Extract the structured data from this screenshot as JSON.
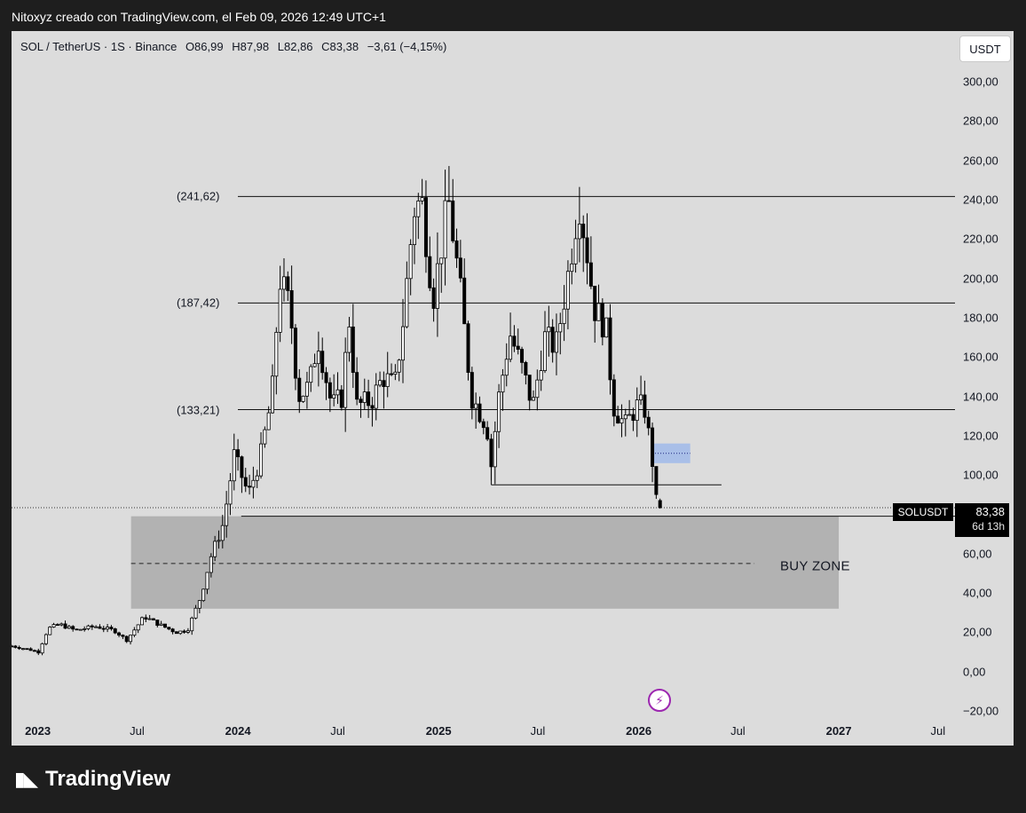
{
  "header": "Nitoxyz creado con TradingView.com, el Feb 09, 2026 12:49 UTC+1",
  "legend": {
    "symbol": "SOL / TetherUS · 1S · Binance",
    "open": "O86,99",
    "high": "H87,98",
    "low": "L82,86",
    "close": "C83,38",
    "change": "−3,61 (−4,15%)"
  },
  "currency_button": "USDT",
  "price_tag": {
    "symbol": "SOLUSDT",
    "price": "83,38",
    "countdown": "6d 13h"
  },
  "annotations": {
    "buy_zone": "BUY ZONE"
  },
  "footer": {
    "brand": "TradingView"
  },
  "colors": {
    "background": "#1e1e1e",
    "panel": "#dcdcdc",
    "candles": "#000000",
    "buy_zone_fill": "#b2b2b2",
    "blue_box": "#a9bfe8",
    "alert_icon": "#9c27b0"
  },
  "chart_data": {
    "type": "candlestick",
    "title": "SOL / TetherUS · 1S · Binance",
    "interval": "1S",
    "ylim": [
      -20,
      310
    ],
    "x_range": [
      "2022-11-14",
      "2027-08-01"
    ],
    "y_ticks": [
      300,
      280,
      260,
      240,
      220,
      200,
      180,
      160,
      140,
      120,
      100,
      60,
      40,
      20,
      0,
      -20
    ],
    "y_tick_labels": [
      "300,00",
      "280,00",
      "260,00",
      "240,00",
      "220,00",
      "200,00",
      "180,00",
      "160,00",
      "140,00",
      "120,00",
      "100,00",
      "60,00",
      "40,00",
      "20,00",
      "0,00",
      "−20,00"
    ],
    "x_ticks": [
      {
        "label": "2023",
        "date": "2023-01-01",
        "bold": true
      },
      {
        "label": "Jul",
        "date": "2023-07-01",
        "bold": false
      },
      {
        "label": "2024",
        "date": "2024-01-01",
        "bold": true
      },
      {
        "label": "Jul",
        "date": "2024-07-01",
        "bold": false
      },
      {
        "label": "2025",
        "date": "2025-01-01",
        "bold": true
      },
      {
        "label": "Jul",
        "date": "2025-07-01",
        "bold": false
      },
      {
        "label": "2026",
        "date": "2026-01-01",
        "bold": true
      },
      {
        "label": "Jul",
        "date": "2026-07-01",
        "bold": false
      },
      {
        "label": "2027",
        "date": "2027-01-01",
        "bold": true
      },
      {
        "label": "Jul",
        "date": "2027-07-01",
        "bold": false
      }
    ],
    "close_path": [
      [
        "2022-11-14",
        13
      ],
      [
        "2022-12-20",
        11
      ],
      [
        "2023-01-02",
        10
      ],
      [
        "2023-01-20",
        22
      ],
      [
        "2023-02-10",
        24
      ],
      [
        "2023-03-10",
        21
      ],
      [
        "2023-04-15",
        23
      ],
      [
        "2023-05-20",
        21
      ],
      [
        "2023-06-12",
        16
      ],
      [
        "2023-07-14",
        28
      ],
      [
        "2023-08-10",
        24
      ],
      [
        "2023-09-10",
        20
      ],
      [
        "2023-10-01",
        21
      ],
      [
        "2023-10-25",
        38
      ],
      [
        "2023-11-12",
        58
      ],
      [
        "2023-12-05",
        75
      ],
      [
        "2023-12-25",
        110
      ],
      [
        "2024-01-20",
        90
      ],
      [
        "2024-02-10",
        108
      ],
      [
        "2024-03-03",
        140
      ],
      [
        "2024-03-17",
        200
      ],
      [
        "2024-04-05",
        185
      ],
      [
        "2024-04-20",
        140
      ],
      [
        "2024-05-10",
        145
      ],
      [
        "2024-05-26",
        170
      ],
      [
        "2024-06-20",
        135
      ],
      [
        "2024-07-10",
        140
      ],
      [
        "2024-07-21",
        182
      ],
      [
        "2024-08-05",
        135
      ],
      [
        "2024-09-01",
        138
      ],
      [
        "2024-09-22",
        150
      ],
      [
        "2024-10-13",
        145
      ],
      [
        "2024-10-27",
        175
      ],
      [
        "2024-11-17",
        235
      ],
      [
        "2024-12-01",
        240
      ],
      [
        "2024-12-22",
        190
      ],
      [
        "2025-01-19",
        240
      ],
      [
        "2025-02-09",
        195
      ],
      [
        "2025-03-02",
        140
      ],
      [
        "2025-03-30",
        125
      ],
      [
        "2025-04-07",
        105
      ],
      [
        "2025-04-21",
        140
      ],
      [
        "2025-05-11",
        172
      ],
      [
        "2025-06-01",
        155
      ],
      [
        "2025-06-22",
        135
      ],
      [
        "2025-07-13",
        170
      ],
      [
        "2025-08-03",
        165
      ],
      [
        "2025-08-24",
        200
      ],
      [
        "2025-09-14",
        240
      ],
      [
        "2025-09-28",
        215
      ],
      [
        "2025-10-12",
        185
      ],
      [
        "2025-11-02",
        175
      ],
      [
        "2025-11-16",
        135
      ],
      [
        "2025-12-07",
        125
      ],
      [
        "2025-12-28",
        135
      ],
      [
        "2026-01-11",
        135
      ],
      [
        "2026-01-25",
        110
      ],
      [
        "2026-02-01",
        87
      ],
      [
        "2026-02-09",
        83.38
      ]
    ],
    "last_candle": {
      "date": "2026-02-09",
      "open": 86.99,
      "high": 87.98,
      "low": 82.86,
      "close": 83.38,
      "change": -3.61,
      "change_pct": -4.15
    },
    "horizontal_levels": [
      {
        "value": 241.62,
        "label": "(241,62)"
      },
      {
        "value": 187.42,
        "label": "(187,42)"
      },
      {
        "value": 133.21,
        "label": "(133,21)"
      }
    ],
    "support_lines": [
      {
        "value": 95,
        "from": "2025-04-07",
        "to": "2026-06-01"
      },
      {
        "value": 79,
        "from": "2024-01-07",
        "to": "2027-09-01"
      }
    ],
    "buy_zone": {
      "label": "BUY ZONE",
      "top": 79,
      "bottom": 32,
      "mid": 55,
      "from": "2023-06-20",
      "to": "2027-01-01"
    },
    "blue_box": {
      "top": 116,
      "bottom": 106,
      "from": "2026-01-26",
      "to": "2026-04-05",
      "dotted": 111
    },
    "current_price_line": 83.38
  }
}
